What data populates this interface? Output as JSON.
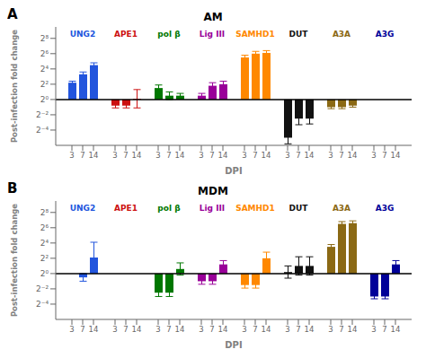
{
  "chart_data": [
    {
      "type": "bar",
      "panel_label": "A",
      "title": "AM",
      "x_label": "DPI",
      "y_label": "Post-infection fold change",
      "categories": [
        "3",
        "7",
        "14"
      ],
      "series": [
        {
          "name": "UNG2",
          "color": "#2255dd",
          "values": [
            2.2,
            3.3,
            4.5
          ],
          "errors": [
            0.2,
            0.3,
            0.3
          ]
        },
        {
          "name": "APE1",
          "color": "#cc1111",
          "values": [
            -0.8,
            -0.8,
            0.1
          ],
          "errors": [
            0.3,
            0.3,
            1.2
          ]
        },
        {
          "name": "pol β",
          "color": "#007700",
          "values": [
            1.5,
            0.5,
            0.5
          ],
          "errors": [
            0.4,
            0.5,
            0.3
          ]
        },
        {
          "name": "Lig III",
          "color": "#990099",
          "values": [
            0.5,
            1.8,
            2.0
          ],
          "errors": [
            0.3,
            0.4,
            0.4
          ]
        },
        {
          "name": "SAMHD1",
          "color": "#ff8800",
          "values": [
            5.5,
            6.0,
            6.1
          ],
          "errors": [
            0.3,
            0.3,
            0.3
          ]
        },
        {
          "name": "DUT",
          "color": "#111111",
          "values": [
            -5.0,
            -2.5,
            -2.5
          ],
          "errors": [
            0.8,
            0.8,
            0.7
          ]
        },
        {
          "name": "A3A",
          "color": "#8B6914",
          "values": [
            -1.0,
            -1.0,
            -0.8
          ],
          "errors": [
            0.2,
            0.2,
            0.2
          ]
        },
        {
          "name": "A3G",
          "color": "#000099",
          "values": [
            0.0,
            0.0,
            0.0
          ],
          "errors": [
            0.2,
            0.2,
            0.2
          ]
        }
      ],
      "ylim": [
        -6.0,
        9.5
      ],
      "yticks": [
        {
          "value": -4,
          "label": "2⁻⁴"
        },
        {
          "value": -2,
          "label": "2⁻²"
        },
        {
          "value": 0,
          "label": "2⁰"
        },
        {
          "value": 2,
          "label": "2²"
        },
        {
          "value": 4,
          "label": "2⁴"
        },
        {
          "value": 6,
          "label": "2⁶"
        },
        {
          "value": 8,
          "label": "2⁸"
        }
      ],
      "hline": 0,
      "grid": false
    },
    {
      "type": "bar",
      "panel_label": "B",
      "title": "MDM",
      "x_label": "DPI",
      "y_label": "Post-infection fold change",
      "categories": [
        "3",
        "7",
        "14"
      ],
      "series": [
        {
          "name": "UNG2",
          "color": "#2255dd",
          "values": [
            0.0,
            -0.5,
            2.1
          ],
          "errors": [
            0.5,
            0.5,
            2.0
          ]
        },
        {
          "name": "APE1",
          "color": "#cc1111",
          "values": [
            0.0,
            0.0,
            0.0
          ],
          "errors": [
            0.5,
            0.6,
            0.5
          ]
        },
        {
          "name": "pol β",
          "color": "#007700",
          "values": [
            -2.5,
            -2.5,
            0.6
          ],
          "errors": [
            0.5,
            0.5,
            0.8
          ]
        },
        {
          "name": "Lig III",
          "color": "#990099",
          "values": [
            -1.0,
            -1.0,
            1.2
          ],
          "errors": [
            0.4,
            0.4,
            0.5
          ]
        },
        {
          "name": "SAMHD1",
          "color": "#ff8800",
          "values": [
            -1.5,
            -1.5,
            2.0
          ],
          "errors": [
            0.4,
            0.4,
            0.8
          ]
        },
        {
          "name": "DUT",
          "color": "#111111",
          "values": [
            0.2,
            1.0,
            1.0
          ],
          "errors": [
            0.8,
            1.2,
            1.2
          ]
        },
        {
          "name": "A3A",
          "color": "#8B6914",
          "values": [
            3.5,
            6.5,
            6.6
          ],
          "errors": [
            0.3,
            0.3,
            0.3
          ]
        },
        {
          "name": "A3G",
          "color": "#000099",
          "values": [
            -3.0,
            -3.0,
            1.2
          ],
          "errors": [
            0.3,
            0.3,
            0.5
          ]
        }
      ],
      "ylim": [
        -6.0,
        9.5
      ],
      "yticks": [
        {
          "value": -4,
          "label": "2⁻⁴"
        },
        {
          "value": -2,
          "label": "2⁻²"
        },
        {
          "value": 0,
          "label": "2⁰"
        },
        {
          "value": 2,
          "label": "2²"
        },
        {
          "value": 4,
          "label": "2⁴"
        },
        {
          "value": 6,
          "label": "2⁶"
        },
        {
          "value": 8,
          "label": "2⁸"
        }
      ],
      "hline": 0,
      "grid": false
    }
  ]
}
